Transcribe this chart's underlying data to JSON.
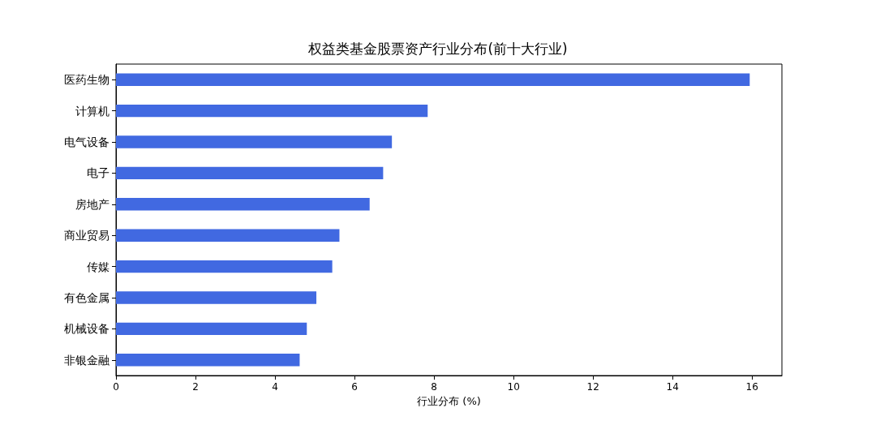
{
  "chart_data": {
    "type": "bar",
    "orientation": "horizontal",
    "title": "权益类基金股票资产行业分布(前十大行业)",
    "xlabel": "行业分布 (%)",
    "categories": [
      "医药生物",
      "计算机",
      "电气设备",
      "电子",
      "房地产",
      "商业贸易",
      "传媒",
      "有色金属",
      "机械设备",
      "非银金融"
    ],
    "values": [
      15.94,
      7.84,
      6.94,
      6.72,
      6.38,
      5.62,
      5.44,
      5.04,
      4.8,
      4.62
    ],
    "color": "#4169e1",
    "xlim": [
      0,
      16.75
    ],
    "xticks": [
      0,
      2,
      4,
      6,
      8,
      10,
      12,
      14,
      16
    ],
    "grid": false
  }
}
